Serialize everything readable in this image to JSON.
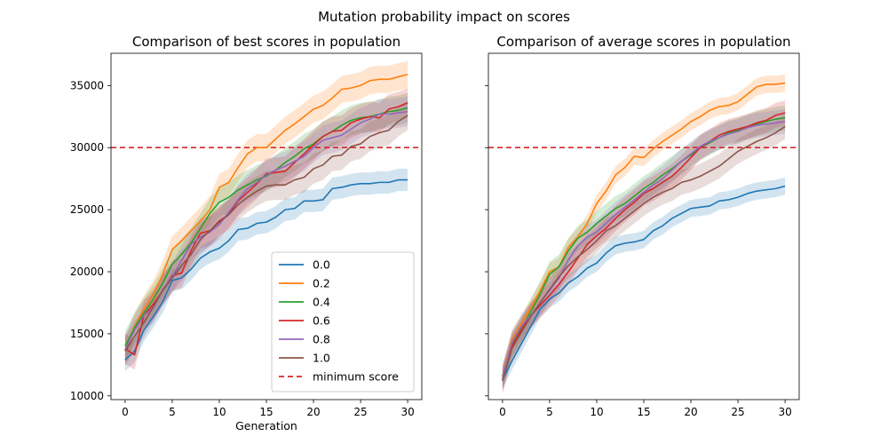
{
  "figure": {
    "suptitle": "Mutation probability impact on scores"
  },
  "chart_data": [
    {
      "type": "line",
      "title": "Comparison of best scores in population",
      "xlabel": "Generation",
      "ylabel": "",
      "xlim": [
        -1.5,
        31.5
      ],
      "ylim": [
        9700,
        37600
      ],
      "xticks": [
        "0",
        "5",
        "10",
        "15",
        "20",
        "25",
        "30"
      ],
      "yticks": [
        "10000",
        "15000",
        "20000",
        "25000",
        "30000",
        "35000"
      ],
      "show_yticklabels": true,
      "grid": false,
      "legend": {
        "placement": "lower-right",
        "entries": [
          "0.0",
          "0.2",
          "0.4",
          "0.6",
          "0.8",
          "1.0",
          "minimum score"
        ]
      },
      "threshold": {
        "name": "minimum score",
        "value": 30000,
        "color": "#d62728",
        "style": "dashed"
      },
      "x": [
        0,
        1,
        2,
        3,
        4,
        5,
        6,
        7,
        8,
        9,
        10,
        11,
        12,
        13,
        14,
        15,
        16,
        17,
        18,
        19,
        20,
        21,
        22,
        23,
        24,
        25,
        26,
        27,
        28,
        29,
        30
      ],
      "series": [
        {
          "name": "0.0",
          "color": "#1f77b4",
          "values": [
            12900,
            13600,
            15300,
            16400,
            17600,
            19300,
            19500,
            20200,
            21100,
            21600,
            21900,
            22500,
            23400,
            23500,
            23900,
            24000,
            24400,
            25000,
            25100,
            25700,
            25700,
            25800,
            26700,
            26800,
            27000,
            27100,
            27100,
            27200,
            27200,
            27400,
            27400
          ],
          "band": 900
        },
        {
          "name": "0.2",
          "color": "#ff7f0e",
          "values": [
            13600,
            15600,
            17000,
            18200,
            19800,
            21800,
            22500,
            23300,
            24100,
            25000,
            26800,
            27200,
            28400,
            29500,
            30000,
            30000,
            30700,
            31400,
            31900,
            32500,
            33100,
            33400,
            34000,
            34700,
            34800,
            35000,
            35400,
            35500,
            35500,
            35700,
            35900
          ],
          "band": 1100
        },
        {
          "name": "0.4",
          "color": "#2ca02c",
          "values": [
            14000,
            15500,
            16700,
            17800,
            19100,
            20600,
            21400,
            22300,
            23500,
            24700,
            25600,
            26000,
            26600,
            27000,
            27400,
            27700,
            28200,
            28800,
            29300,
            29900,
            30300,
            30900,
            31300,
            31800,
            32200,
            32400,
            32500,
            32700,
            32900,
            33000,
            33200
          ],
          "band": 1200
        },
        {
          "name": "0.6",
          "color": "#d62728",
          "values": [
            13800,
            13300,
            16500,
            17400,
            18500,
            19700,
            19900,
            21700,
            23100,
            23300,
            24100,
            24600,
            25700,
            26400,
            27100,
            27900,
            28000,
            28100,
            28800,
            29500,
            30200,
            30900,
            31300,
            31400,
            32000,
            32300,
            32500,
            32400,
            33100,
            33300,
            33600
          ],
          "band": 1200
        },
        {
          "name": "0.8",
          "color": "#9467bd",
          "values": [
            13700,
            15300,
            16500,
            17100,
            18600,
            19600,
            20900,
            22200,
            22800,
            23200,
            23800,
            24800,
            25800,
            26700,
            27200,
            27800,
            28200,
            28500,
            28900,
            29300,
            30000,
            30600,
            30800,
            31000,
            31500,
            32000,
            32300,
            32700,
            32700,
            32800,
            32900
          ],
          "band": 1200
        },
        {
          "name": "1.0",
          "color": "#8c564b",
          "values": [
            13600,
            14800,
            15900,
            17200,
            18500,
            19500,
            20500,
            21400,
            22600,
            23300,
            24000,
            24600,
            25400,
            26000,
            26500,
            26900,
            27000,
            27000,
            27400,
            27600,
            28300,
            28600,
            29300,
            29400,
            30100,
            30300,
            30900,
            31200,
            31400,
            32100,
            32600
          ],
          "band": 1200
        }
      ]
    },
    {
      "type": "line",
      "title": "Comparison of average scores in population",
      "xlabel": "",
      "ylabel": "",
      "xlim": [
        -1.5,
        31.5
      ],
      "ylim": [
        9700,
        37600
      ],
      "xticks": [
        "0",
        "5",
        "10",
        "15",
        "20",
        "25",
        "30"
      ],
      "yticks": [
        "10000",
        "15000",
        "20000",
        "25000",
        "30000",
        "35000"
      ],
      "show_yticklabels": false,
      "grid": false,
      "threshold": {
        "name": "minimum score",
        "value": 30000,
        "color": "#d62728",
        "style": "dashed"
      },
      "x": [
        0,
        1,
        2,
        3,
        4,
        5,
        6,
        7,
        8,
        9,
        10,
        11,
        12,
        13,
        14,
        15,
        16,
        17,
        18,
        19,
        20,
        21,
        22,
        23,
        24,
        25,
        26,
        27,
        28,
        29,
        30
      ],
      "series": [
        {
          "name": "0.0",
          "color": "#1f77b4",
          "values": [
            11300,
            12800,
            14200,
            15600,
            17000,
            17800,
            18300,
            19100,
            19600,
            20300,
            20700,
            21500,
            22100,
            22300,
            22400,
            22600,
            23300,
            23700,
            24300,
            24700,
            25100,
            25200,
            25300,
            25700,
            25800,
            26000,
            26300,
            26500,
            26600,
            26700,
            26900
          ],
          "band": 700
        },
        {
          "name": "0.2",
          "color": "#ff7f0e",
          "values": [
            11600,
            14500,
            15800,
            17100,
            18500,
            20000,
            20400,
            22000,
            22800,
            23900,
            25500,
            26500,
            27800,
            28400,
            29300,
            29200,
            29900,
            30500,
            31000,
            31500,
            32100,
            32500,
            33000,
            33300,
            33400,
            33700,
            34300,
            34900,
            35100,
            35100,
            35200
          ],
          "band": 700
        },
        {
          "name": "0.4",
          "color": "#2ca02c",
          "values": [
            11600,
            14100,
            15400,
            16800,
            18200,
            19800,
            20400,
            21700,
            22700,
            23200,
            23900,
            24500,
            25100,
            25500,
            26100,
            26700,
            27200,
            27800,
            28300,
            28900,
            29400,
            30000,
            30400,
            30800,
            31200,
            31400,
            31700,
            31900,
            32100,
            32300,
            32400
          ],
          "band": 1000
        },
        {
          "name": "0.6",
          "color": "#d62728",
          "values": [
            11300,
            14000,
            15300,
            16500,
            17300,
            18100,
            19000,
            20000,
            21100,
            22200,
            22900,
            23500,
            24300,
            25000,
            25600,
            26300,
            26700,
            27200,
            27700,
            28400,
            29200,
            30000,
            30500,
            31000,
            31300,
            31500,
            31700,
            32000,
            32200,
            32600,
            32800
          ],
          "band": 1000
        },
        {
          "name": "0.8",
          "color": "#9467bd",
          "values": [
            11500,
            14300,
            15600,
            16500,
            17500,
            18500,
            19500,
            21000,
            22100,
            22800,
            23200,
            23900,
            24600,
            25200,
            25800,
            26400,
            27000,
            27500,
            28200,
            28900,
            29500,
            30100,
            30500,
            30800,
            31100,
            31300,
            31600,
            31800,
            31900,
            32000,
            32100
          ],
          "band": 1000
        },
        {
          "name": "1.0",
          "color": "#8c564b",
          "values": [
            11200,
            13800,
            15100,
            16400,
            17500,
            18600,
            19600,
            20500,
            21200,
            21800,
            22500,
            23300,
            23700,
            24300,
            24900,
            25500,
            26000,
            26400,
            26700,
            27200,
            27400,
            27700,
            28100,
            28500,
            29100,
            29700,
            30100,
            30500,
            30800,
            31200,
            31700
          ],
          "band": 1000
        }
      ]
    }
  ]
}
